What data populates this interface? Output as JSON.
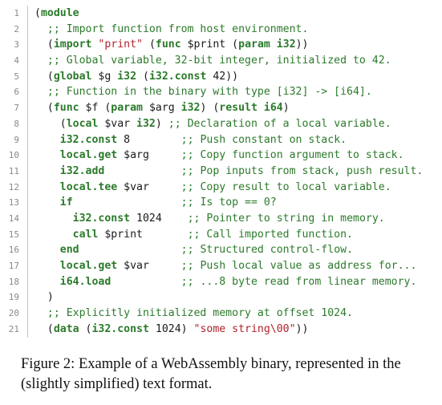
{
  "code": {
    "lines": [
      {
        "n": "1",
        "segments": [
          {
            "t": "(",
            "c": "pl"
          },
          {
            "t": "module",
            "c": "kw"
          }
        ]
      },
      {
        "n": "2",
        "segments": [
          {
            "t": "  ;; Import function from host environment.",
            "c": "cm"
          }
        ]
      },
      {
        "n": "3",
        "segments": [
          {
            "t": "  (",
            "c": "pl"
          },
          {
            "t": "import",
            "c": "kw"
          },
          {
            "t": " ",
            "c": "pl"
          },
          {
            "t": "\"print\"",
            "c": "str"
          },
          {
            "t": " (",
            "c": "pl"
          },
          {
            "t": "func",
            "c": "kw"
          },
          {
            "t": " $print (",
            "c": "pl"
          },
          {
            "t": "param",
            "c": "kw"
          },
          {
            "t": " ",
            "c": "pl"
          },
          {
            "t": "i32",
            "c": "kw"
          },
          {
            "t": "))",
            "c": "pl"
          }
        ]
      },
      {
        "n": "4",
        "segments": [
          {
            "t": "  ;; Global variable, 32-bit integer, initialized to 42.",
            "c": "cm"
          }
        ]
      },
      {
        "n": "5",
        "segments": [
          {
            "t": "  (",
            "c": "pl"
          },
          {
            "t": "global",
            "c": "kw"
          },
          {
            "t": " $g ",
            "c": "pl"
          },
          {
            "t": "i32",
            "c": "kw"
          },
          {
            "t": " (",
            "c": "pl"
          },
          {
            "t": "i32.const",
            "c": "kw"
          },
          {
            "t": " 42))",
            "c": "pl"
          }
        ]
      },
      {
        "n": "6",
        "segments": [
          {
            "t": "  ;; Function in the binary with type [i32] -> [i64].",
            "c": "cm"
          }
        ]
      },
      {
        "n": "7",
        "segments": [
          {
            "t": "  (",
            "c": "pl"
          },
          {
            "t": "func",
            "c": "kw"
          },
          {
            "t": " $f (",
            "c": "pl"
          },
          {
            "t": "param",
            "c": "kw"
          },
          {
            "t": " $arg ",
            "c": "pl"
          },
          {
            "t": "i32",
            "c": "kw"
          },
          {
            "t": ") (",
            "c": "pl"
          },
          {
            "t": "result",
            "c": "kw"
          },
          {
            "t": " ",
            "c": "pl"
          },
          {
            "t": "i64",
            "c": "kw"
          },
          {
            "t": ")",
            "c": "pl"
          }
        ]
      },
      {
        "n": "8",
        "segments": [
          {
            "t": "    (",
            "c": "pl"
          },
          {
            "t": "local",
            "c": "kw"
          },
          {
            "t": " $var ",
            "c": "pl"
          },
          {
            "t": "i32",
            "c": "kw"
          },
          {
            "t": ") ",
            "c": "pl"
          },
          {
            "t": ";; Declaration of a local variable.",
            "c": "cm"
          }
        ]
      },
      {
        "n": "9",
        "segments": [
          {
            "t": "    ",
            "c": "pl"
          },
          {
            "t": "i32.const",
            "c": "kw"
          },
          {
            "t": " 8        ",
            "c": "pl"
          },
          {
            "t": ";; Push constant on stack.",
            "c": "cm"
          }
        ]
      },
      {
        "n": "10",
        "segments": [
          {
            "t": "    ",
            "c": "pl"
          },
          {
            "t": "local.get",
            "c": "kw"
          },
          {
            "t": " $arg     ",
            "c": "pl"
          },
          {
            "t": ";; Copy function argument to stack.",
            "c": "cm"
          }
        ]
      },
      {
        "n": "11",
        "segments": [
          {
            "t": "    ",
            "c": "pl"
          },
          {
            "t": "i32.add",
            "c": "kw"
          },
          {
            "t": "            ",
            "c": "pl"
          },
          {
            "t": ";; Pop inputs from stack, push result.",
            "c": "cm"
          }
        ]
      },
      {
        "n": "12",
        "segments": [
          {
            "t": "    ",
            "c": "pl"
          },
          {
            "t": "local.tee",
            "c": "kw"
          },
          {
            "t": " $var     ",
            "c": "pl"
          },
          {
            "t": ";; Copy result to local variable.",
            "c": "cm"
          }
        ]
      },
      {
        "n": "13",
        "segments": [
          {
            "t": "    ",
            "c": "pl"
          },
          {
            "t": "if",
            "c": "kw"
          },
          {
            "t": "                 ",
            "c": "pl"
          },
          {
            "t": ";; Is top == 0?",
            "c": "cm"
          }
        ]
      },
      {
        "n": "14",
        "segments": [
          {
            "t": "      ",
            "c": "pl"
          },
          {
            "t": "i32.const",
            "c": "kw"
          },
          {
            "t": " 1024    ",
            "c": "pl"
          },
          {
            "t": ";; Pointer to string in memory.",
            "c": "cm"
          }
        ]
      },
      {
        "n": "15",
        "segments": [
          {
            "t": "      ",
            "c": "pl"
          },
          {
            "t": "call",
            "c": "kw"
          },
          {
            "t": " $print       ",
            "c": "pl"
          },
          {
            "t": ";; Call imported function.",
            "c": "cm"
          }
        ]
      },
      {
        "n": "16",
        "segments": [
          {
            "t": "    ",
            "c": "pl"
          },
          {
            "t": "end",
            "c": "kw"
          },
          {
            "t": "                ",
            "c": "pl"
          },
          {
            "t": ";; Structured control-flow.",
            "c": "cm"
          }
        ]
      },
      {
        "n": "17",
        "segments": [
          {
            "t": "    ",
            "c": "pl"
          },
          {
            "t": "local.get",
            "c": "kw"
          },
          {
            "t": " $var     ",
            "c": "pl"
          },
          {
            "t": ";; Push local value as address for...",
            "c": "cm"
          }
        ]
      },
      {
        "n": "18",
        "segments": [
          {
            "t": "    ",
            "c": "pl"
          },
          {
            "t": "i64.load",
            "c": "kw"
          },
          {
            "t": "           ",
            "c": "pl"
          },
          {
            "t": ";; ...8 byte read from linear memory.",
            "c": "cm"
          }
        ]
      },
      {
        "n": "19",
        "segments": [
          {
            "t": "  )",
            "c": "pl"
          }
        ]
      },
      {
        "n": "20",
        "segments": [
          {
            "t": "  ;; Explicitly initialized memory at offset 1024.",
            "c": "cm"
          }
        ]
      },
      {
        "n": "21",
        "segments": [
          {
            "t": "  (",
            "c": "pl"
          },
          {
            "t": "data",
            "c": "kw"
          },
          {
            "t": " (",
            "c": "pl"
          },
          {
            "t": "i32.const",
            "c": "kw"
          },
          {
            "t": " 1024) ",
            "c": "pl"
          },
          {
            "t": "\"some string\\00\"",
            "c": "str"
          },
          {
            "t": "))",
            "c": "pl"
          }
        ]
      }
    ]
  },
  "caption": {
    "text": "Figure 2: Example of a WebAssembly binary, represented in the (slightly simplified) text format."
  }
}
